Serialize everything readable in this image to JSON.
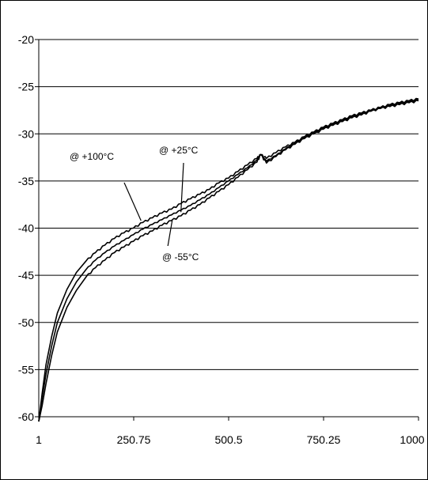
{
  "chart_data": {
    "type": "line",
    "title": "",
    "xlabel": "",
    "ylabel": "",
    "xlim": [
      1,
      1000
    ],
    "ylim": [
      -60,
      -20
    ],
    "x_ticks": [
      1,
      250.75,
      500.5,
      750.25,
      1000
    ],
    "x_tick_labels": [
      "1",
      "250.75",
      "500.5",
      "750.25",
      "1000"
    ],
    "y_ticks": [
      -20,
      -25,
      -30,
      -35,
      -40,
      -45,
      -50,
      -55,
      -60
    ],
    "y_tick_labels": [
      "-20",
      "-25",
      "-30",
      "-35",
      "-40",
      "-45",
      "-50",
      "-55",
      "-60"
    ],
    "grid": "horizontal",
    "line_color": "#000000",
    "background_color": "#ffffff",
    "series": [
      {
        "name": "@ +100°C",
        "x": [
          1,
          10,
          20,
          35,
          50,
          75,
          100,
          125,
          150,
          175,
          200,
          225,
          250,
          275,
          300,
          325,
          350,
          375,
          400,
          425,
          450,
          475,
          500,
          525,
          550,
          575,
          585,
          600,
          625,
          650,
          675,
          700,
          725,
          750,
          775,
          800,
          825,
          850,
          875,
          900,
          925,
          950,
          975,
          1000
        ],
        "y": [
          -60.5,
          -57.5,
          -54.5,
          -51.5,
          -49.0,
          -46.5,
          -44.7,
          -43.5,
          -42.6,
          -41.8,
          -41.1,
          -40.5,
          -40.0,
          -39.4,
          -38.9,
          -38.4,
          -38.0,
          -37.4,
          -36.9,
          -36.4,
          -35.9,
          -35.2,
          -34.7,
          -34.0,
          -33.3,
          -32.6,
          -32.2,
          -32.6,
          -32.0,
          -31.4,
          -30.9,
          -30.3,
          -29.8,
          -29.3,
          -28.9,
          -28.5,
          -28.1,
          -27.8,
          -27.5,
          -27.2,
          -26.9,
          -26.7,
          -26.5,
          -26.3
        ]
      },
      {
        "name": "@ +25°C",
        "x": [
          1,
          10,
          20,
          35,
          50,
          75,
          100,
          125,
          150,
          175,
          200,
          225,
          250,
          275,
          300,
          325,
          350,
          375,
          400,
          425,
          450,
          475,
          500,
          525,
          550,
          575,
          585,
          600,
          625,
          650,
          675,
          700,
          725,
          750,
          775,
          800,
          825,
          850,
          875,
          900,
          925,
          950,
          975,
          1000
        ],
        "y": [
          -60.5,
          -58.0,
          -55.5,
          -52.5,
          -50.0,
          -47.5,
          -45.7,
          -44.4,
          -43.4,
          -42.6,
          -41.9,
          -41.3,
          -40.7,
          -40.1,
          -39.6,
          -39.1,
          -38.6,
          -38.1,
          -37.6,
          -37.0,
          -36.4,
          -35.7,
          -35.0,
          -34.3,
          -33.6,
          -32.8,
          -32.2,
          -32.9,
          -32.3,
          -31.6,
          -31.0,
          -30.4,
          -29.9,
          -29.4,
          -29.0,
          -28.6,
          -28.2,
          -27.9,
          -27.6,
          -27.3,
          -27.0,
          -26.8,
          -26.6,
          -26.4
        ]
      },
      {
        "name": "@ -55°C",
        "x": [
          1,
          10,
          20,
          35,
          50,
          75,
          100,
          125,
          150,
          175,
          200,
          225,
          250,
          275,
          300,
          325,
          350,
          375,
          400,
          425,
          450,
          475,
          500,
          525,
          550,
          575,
          585,
          600,
          625,
          650,
          675,
          700,
          725,
          750,
          775,
          800,
          825,
          850,
          875,
          900,
          925,
          950,
          975,
          1000
        ],
        "y": [
          -60.5,
          -58.8,
          -56.5,
          -53.5,
          -51.0,
          -48.4,
          -46.6,
          -45.2,
          -44.2,
          -43.4,
          -42.6,
          -42.0,
          -41.4,
          -40.8,
          -40.3,
          -39.7,
          -39.2,
          -38.7,
          -38.1,
          -37.5,
          -36.8,
          -36.1,
          -35.4,
          -34.6,
          -33.8,
          -33.0,
          -32.2,
          -33.1,
          -32.4,
          -31.7,
          -31.1,
          -30.5,
          -30.0,
          -29.5,
          -29.1,
          -28.7,
          -28.3,
          -28.0,
          -27.6,
          -27.3,
          -27.1,
          -26.9,
          -26.7,
          -26.5
        ]
      }
    ],
    "annotations": [
      {
        "text": "@ +100°C",
        "series_index": 0,
        "point_x": 270,
        "point_y": -39.2
      },
      {
        "text": "@ +25°C",
        "series_index": 1,
        "point_x": 375,
        "point_y": -38.3
      },
      {
        "text": "@ -55°C",
        "series_index": 2,
        "point_x": 352,
        "point_y": -39.2
      }
    ]
  }
}
